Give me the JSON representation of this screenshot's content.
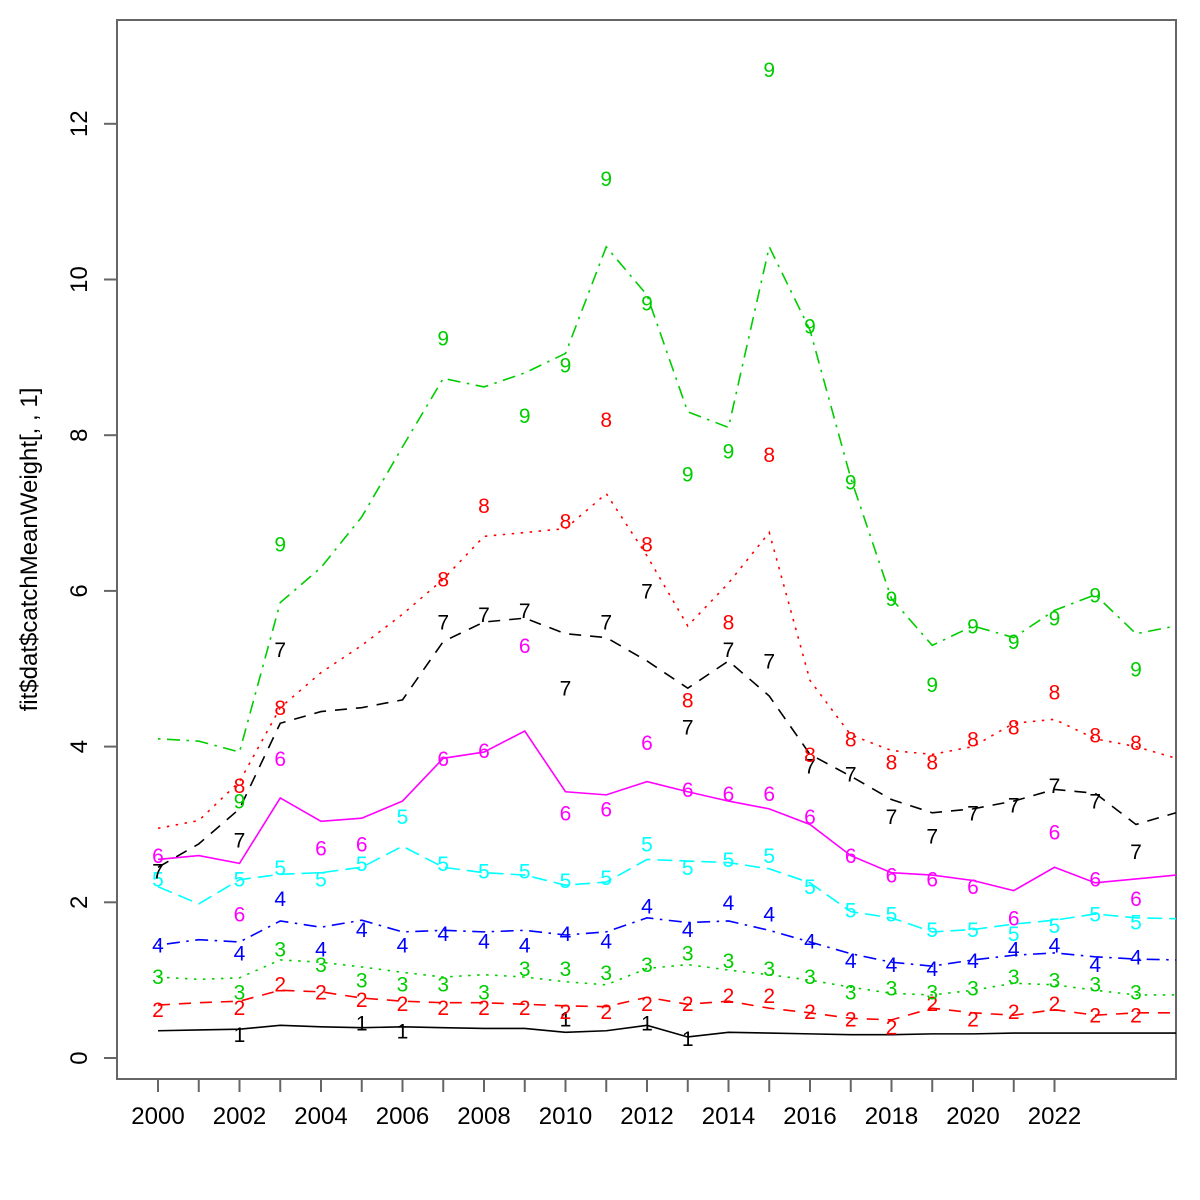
{
  "chart_data": {
    "type": "line",
    "title": "",
    "xlabel": "",
    "ylabel": "fit$dat$catchMeanWeight[, , 1]",
    "legend_position": "none",
    "grid": false,
    "ylim": [
      0,
      13.2
    ],
    "yticks": [
      0,
      2,
      4,
      6,
      8,
      10,
      12
    ],
    "x_minor_tick_range": [
      2000,
      2022
    ],
    "x_labeled_ticks": [
      2000,
      2002,
      2004,
      2006,
      2008,
      2010,
      2012,
      2014,
      2016,
      2018,
      2020,
      2022
    ],
    "years": [
      2000,
      2001,
      2002,
      2003,
      2004,
      2005,
      2006,
      2007,
      2008,
      2009,
      2010,
      2011,
      2012,
      2013,
      2014,
      2015,
      2016,
      2017,
      2018,
      2019,
      2020,
      2021,
      2022,
      2023,
      2024
    ],
    "series": [
      {
        "label": "1",
        "color": "#000000",
        "linetype": "solid",
        "line": [
          0.35,
          0.36,
          0.37,
          0.42,
          0.4,
          0.39,
          0.4,
          0.39,
          0.38,
          0.38,
          0.33,
          0.35,
          0.42,
          0.27,
          0.33,
          0.32,
          0.31,
          0.3,
          0.3,
          0.31,
          0.31,
          0.32,
          0.32,
          0.32,
          0.32
        ],
        "edge": 0.32,
        "obs": {
          "2002": 0.3,
          "2005": 0.45,
          "2006": 0.35,
          "2010": 0.5,
          "2012": 0.45,
          "2013": 0.25
        }
      },
      {
        "label": "2",
        "color": "#FF0000",
        "linetype": "dashed",
        "line": [
          0.68,
          0.71,
          0.73,
          0.87,
          0.85,
          0.77,
          0.73,
          0.71,
          0.71,
          0.69,
          0.67,
          0.66,
          0.78,
          0.69,
          0.73,
          0.64,
          0.58,
          0.51,
          0.49,
          0.64,
          0.58,
          0.55,
          0.62,
          0.55,
          0.58
        ],
        "edge": 0.58,
        "obs": {
          "2000": 0.62,
          "2002": 0.65,
          "2003": 0.95,
          "2004": 0.85,
          "2005": 0.75,
          "2006": 0.7,
          "2007": 0.65,
          "2008": 0.65,
          "2009": 0.65,
          "2010": 0.6,
          "2011": 0.6,
          "2012": 0.7,
          "2013": 0.7,
          "2014": 0.8,
          "2015": 0.8,
          "2016": 0.6,
          "2017": 0.5,
          "2018": 0.4,
          "2019": 0.7,
          "2020": 0.5,
          "2021": 0.6,
          "2022": 0.7,
          "2023": 0.55,
          "2024": 0.55
        }
      },
      {
        "label": "3",
        "color": "#00CD00",
        "linetype": "dotted",
        "line": [
          1.04,
          1.01,
          1.03,
          1.26,
          1.23,
          1.17,
          1.1,
          1.04,
          1.07,
          1.04,
          0.98,
          0.94,
          1.15,
          1.2,
          1.13,
          1.07,
          1.0,
          0.91,
          0.83,
          0.81,
          0.87,
          0.96,
          0.94,
          0.87,
          0.81
        ],
        "edge": 0.81,
        "obs": {
          "2000": 1.05,
          "2002": 0.85,
          "2003": 1.4,
          "2004": 1.2,
          "2005": 1.0,
          "2006": 0.95,
          "2007": 0.95,
          "2008": 0.85,
          "2009": 1.15,
          "2010": 1.15,
          "2011": 1.1,
          "2012": 1.2,
          "2013": 1.35,
          "2014": 1.25,
          "2015": 1.15,
          "2016": 1.05,
          "2017": 0.85,
          "2018": 0.9,
          "2019": 0.85,
          "2020": 0.9,
          "2021": 1.05,
          "2022": 1.0,
          "2023": 0.95,
          "2024": 0.85
        }
      },
      {
        "label": "4",
        "color": "#0000FF",
        "linetype": "dotdash",
        "line": [
          1.45,
          1.52,
          1.49,
          1.76,
          1.68,
          1.77,
          1.62,
          1.64,
          1.62,
          1.64,
          1.58,
          1.62,
          1.8,
          1.74,
          1.76,
          1.64,
          1.49,
          1.34,
          1.23,
          1.18,
          1.26,
          1.32,
          1.35,
          1.3,
          1.27
        ],
        "edge": 1.26,
        "obs": {
          "2000": 1.45,
          "2002": 1.35,
          "2003": 2.05,
          "2004": 1.4,
          "2005": 1.65,
          "2006": 1.45,
          "2007": 1.6,
          "2008": 1.5,
          "2009": 1.45,
          "2010": 1.6,
          "2011": 1.5,
          "2012": 1.95,
          "2013": 1.65,
          "2014": 2.0,
          "2015": 1.85,
          "2016": 1.5,
          "2017": 1.25,
          "2018": 1.2,
          "2019": 1.15,
          "2020": 1.25,
          "2021": 1.4,
          "2022": 1.45,
          "2023": 1.2,
          "2024": 1.3
        }
      },
      {
        "label": "5",
        "color": "#00FFFF",
        "linetype": "longdash",
        "line": [
          2.2,
          1.98,
          2.29,
          2.36,
          2.38,
          2.45,
          2.72,
          2.45,
          2.38,
          2.35,
          2.22,
          2.26,
          2.55,
          2.53,
          2.51,
          2.43,
          2.25,
          1.88,
          1.8,
          1.62,
          1.65,
          1.72,
          1.77,
          1.85,
          1.8
        ],
        "edge": 1.79,
        "obs": {
          "2000": 2.3,
          "2002": 2.3,
          "2003": 2.45,
          "2004": 2.3,
          "2005": 2.5,
          "2006": 3.1,
          "2007": 2.5,
          "2008": 2.4,
          "2009": 2.4,
          "2010": 2.28,
          "2011": 2.32,
          "2012": 2.75,
          "2013": 2.45,
          "2014": 2.55,
          "2015": 2.6,
          "2016": 2.2,
          "2017": 1.9,
          "2018": 1.85,
          "2019": 1.65,
          "2020": 1.65,
          "2021": 1.6,
          "2022": 1.7,
          "2023": 1.85,
          "2024": 1.75
        }
      },
      {
        "label": "6",
        "color": "#FF00FF",
        "linetype": "solid",
        "line": [
          2.55,
          2.6,
          2.5,
          3.34,
          3.04,
          3.08,
          3.3,
          3.85,
          3.93,
          4.2,
          3.42,
          3.38,
          3.55,
          3.42,
          3.3,
          3.2,
          3.0,
          2.6,
          2.38,
          2.35,
          2.28,
          2.15,
          2.45,
          2.25,
          2.3
        ],
        "edge": 2.35,
        "obs": {
          "2000": 2.6,
          "2002": 1.85,
          "2003": 3.85,
          "2004": 2.7,
          "2005": 2.75,
          "2007": 3.85,
          "2008": 3.95,
          "2009": 5.3,
          "2010": 3.15,
          "2011": 3.2,
          "2012": 4.05,
          "2013": 3.45,
          "2014": 3.4,
          "2015": 3.4,
          "2016": 3.1,
          "2017": 2.6,
          "2018": 2.35,
          "2019": 2.3,
          "2020": 2.2,
          "2021": 1.8,
          "2022": 2.9,
          "2023": 2.3,
          "2024": 2.05
        }
      },
      {
        "label": "7",
        "color": "#000000",
        "linetype": "dashed",
        "line": [
          2.45,
          2.75,
          3.2,
          4.3,
          4.45,
          4.5,
          4.6,
          5.35,
          5.6,
          5.65,
          5.45,
          5.4,
          5.1,
          4.75,
          5.1,
          4.65,
          3.9,
          3.62,
          3.32,
          3.15,
          3.2,
          3.3,
          3.45,
          3.4,
          3.0
        ],
        "edge": 3.15,
        "obs": {
          "2000": 2.4,
          "2002": 2.8,
          "2003": 5.25,
          "2007": 5.6,
          "2008": 5.7,
          "2009": 5.75,
          "2010": 4.75,
          "2011": 5.6,
          "2012": 6.0,
          "2013": 4.25,
          "2014": 5.25,
          "2015": 5.1,
          "2016": 3.75,
          "2017": 3.65,
          "2018": 3.1,
          "2019": 2.85,
          "2020": 3.15,
          "2021": 3.25,
          "2022": 3.5,
          "2023": 3.3,
          "2024": 2.65
        }
      },
      {
        "label": "8",
        "color": "#FF0000",
        "linetype": "dotted",
        "line": [
          2.95,
          3.05,
          3.55,
          4.5,
          4.95,
          5.3,
          5.7,
          6.15,
          6.7,
          6.75,
          6.8,
          7.25,
          6.45,
          5.55,
          6.1,
          6.75,
          4.85,
          4.15,
          3.95,
          3.9,
          4.0,
          4.3,
          4.35,
          4.1,
          4.0
        ],
        "edge": 3.85,
        "obs": {
          "2002": 3.5,
          "2003": 4.5,
          "2007": 6.15,
          "2008": 7.1,
          "2010": 6.9,
          "2011": 8.2,
          "2012": 6.6,
          "2013": 4.6,
          "2014": 5.6,
          "2015": 7.75,
          "2016": 3.9,
          "2017": 4.1,
          "2018": 3.8,
          "2019": 3.8,
          "2020": 4.1,
          "2021": 4.25,
          "2022": 4.7,
          "2023": 4.15,
          "2024": 4.05
        }
      },
      {
        "label": "9",
        "color": "#00CD00",
        "linetype": "dotdash",
        "line": [
          4.1,
          4.07,
          3.93,
          5.85,
          6.3,
          6.95,
          7.85,
          8.73,
          8.62,
          8.8,
          9.05,
          10.42,
          9.8,
          8.3,
          8.1,
          10.42,
          9.35,
          7.45,
          5.9,
          5.3,
          5.55,
          5.4,
          5.75,
          5.95,
          5.45
        ],
        "edge": 5.55,
        "obs": {
          "2002": 3.3,
          "2003": 6.6,
          "2007": 9.25,
          "2009": 8.25,
          "2010": 8.9,
          "2011": 11.3,
          "2012": 9.7,
          "2013": 7.5,
          "2014": 7.8,
          "2015": 12.7,
          "2016": 9.4,
          "2017": 7.4,
          "2018": 5.9,
          "2019": 4.8,
          "2020": 5.55,
          "2021": 5.35,
          "2022": 5.65,
          "2023": 5.95,
          "2024": 5.0
        }
      }
    ]
  },
  "colors": {
    "axis": "#666666",
    "tick_text": "#000000",
    "background": "#ffffff"
  }
}
